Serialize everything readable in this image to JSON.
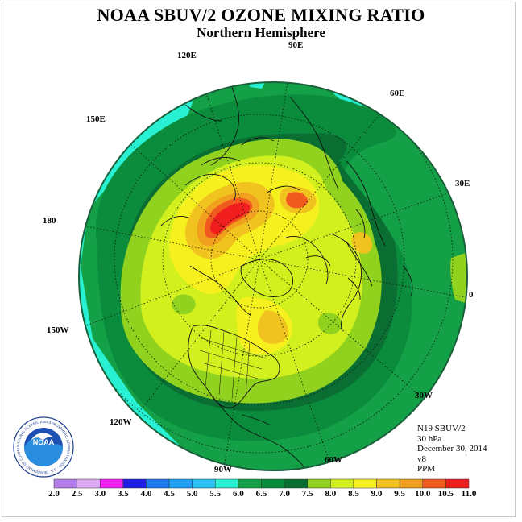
{
  "title": "NOAA SBUV/2 OZONE MIXING RATIO",
  "subtitle": "Northern Hemisphere",
  "longitude_labels": [
    "90E",
    "60E",
    "30E",
    "0",
    "30W",
    "60W",
    "90W",
    "120W",
    "150W",
    "180",
    "150E",
    "120E"
  ],
  "info": {
    "satellite": "N19 SBUV/2",
    "level": "30 hPa",
    "date": "December 30, 2014",
    "version": "v8",
    "units": "PPM"
  },
  "logo": {
    "text": "NOAA",
    "ring_text": "NATIONAL OCEANIC AND ATMOSPHERIC ADMINISTRATION · U.S. DEPARTMENT OF COMMERCE"
  },
  "colorbar": {
    "ticks": [
      "2.0",
      "2.5",
      "3.0",
      "3.5",
      "4.0",
      "4.5",
      "5.0",
      "5.5",
      "6.0",
      "6.5",
      "7.0",
      "7.5",
      "8.0",
      "8.5",
      "9.0",
      "9.5",
      "10.0",
      "10.5",
      "11.0"
    ],
    "colors": [
      "#b37ee8",
      "#dcaaf2",
      "#f21ef2",
      "#1e1ee8",
      "#1e78f0",
      "#1ea0f5",
      "#28c3f0",
      "#28f0d2",
      "#14a046",
      "#0a8c3c",
      "#0a6e32",
      "#91d21e",
      "#d2f01e",
      "#f5f01e",
      "#f0c31e",
      "#f0a01e",
      "#f05a1e",
      "#f01e1e",
      "#8c5a32"
    ]
  }
}
